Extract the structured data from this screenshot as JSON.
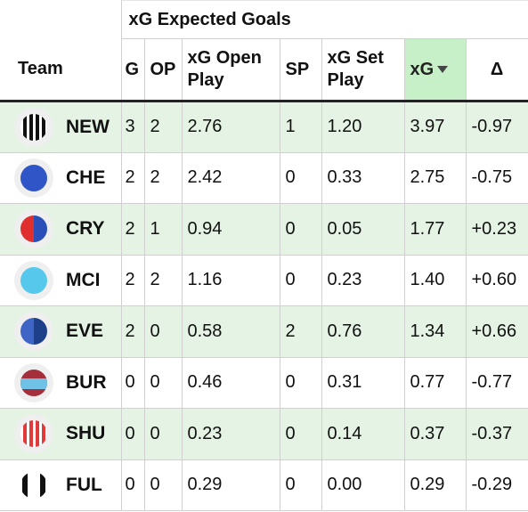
{
  "group_header": "xG Expected Goals",
  "columns": {
    "team": "Team",
    "g": "G",
    "op": "OP",
    "xg_open_play": "xG Open Play",
    "sp": "SP",
    "xg_set_play": "xG Set Play",
    "xg": "xG",
    "delta": "Δ"
  },
  "sorted_column": "xg",
  "rows": [
    {
      "team": "NEW",
      "g": "3",
      "op": "2",
      "xg_open_play": "2.76",
      "sp": "1",
      "xg_set_play": "1.20",
      "xg": "3.97",
      "delta": "-0.97",
      "badge": "newcastle-badge-icon"
    },
    {
      "team": "CHE",
      "g": "2",
      "op": "2",
      "xg_open_play": "2.42",
      "sp": "0",
      "xg_set_play": "0.33",
      "xg": "2.75",
      "delta": "-0.75",
      "badge": "chelsea-badge-icon"
    },
    {
      "team": "CRY",
      "g": "2",
      "op": "1",
      "xg_open_play": "0.94",
      "sp": "0",
      "xg_set_play": "0.05",
      "xg": "1.77",
      "delta": "+0.23",
      "badge": "crystal-palace-badge-icon"
    },
    {
      "team": "MCI",
      "g": "2",
      "op": "2",
      "xg_open_play": "1.16",
      "sp": "0",
      "xg_set_play": "0.23",
      "xg": "1.40",
      "delta": "+0.60",
      "badge": "man-city-badge-icon"
    },
    {
      "team": "EVE",
      "g": "2",
      "op": "0",
      "xg_open_play": "0.58",
      "sp": "2",
      "xg_set_play": "0.76",
      "xg": "1.34",
      "delta": "+0.66",
      "badge": "everton-badge-icon"
    },
    {
      "team": "BUR",
      "g": "0",
      "op": "0",
      "xg_open_play": "0.46",
      "sp": "0",
      "xg_set_play": "0.31",
      "xg": "0.77",
      "delta": "-0.77",
      "badge": "burnley-badge-icon"
    },
    {
      "team": "SHU",
      "g": "0",
      "op": "0",
      "xg_open_play": "0.23",
      "sp": "0",
      "xg_set_play": "0.14",
      "xg": "0.37",
      "delta": "-0.37",
      "badge": "sheffield-united-badge-icon"
    },
    {
      "team": "FUL",
      "g": "0",
      "op": "0",
      "xg_open_play": "0.29",
      "sp": "0",
      "xg_set_play": "0.00",
      "xg": "0.29",
      "delta": "-0.29",
      "badge": "fulham-badge-icon"
    }
  ],
  "colors": {
    "row_highlight": "#e4f3e4",
    "sorted_header": "#c8f0c8",
    "newcastle_black": "#111111",
    "chelsea_blue": "#2f55c7",
    "palace_red": "#e02f2f",
    "palace_blue": "#2a4fb8",
    "city_sky": "#55c8ec",
    "everton_dark": "#1e3f8a",
    "everton_light": "#3f66c7",
    "burnley_claret": "#a4303c",
    "burnley_sky": "#6fc2e6",
    "sheffield_red": "#e23a3a"
  }
}
